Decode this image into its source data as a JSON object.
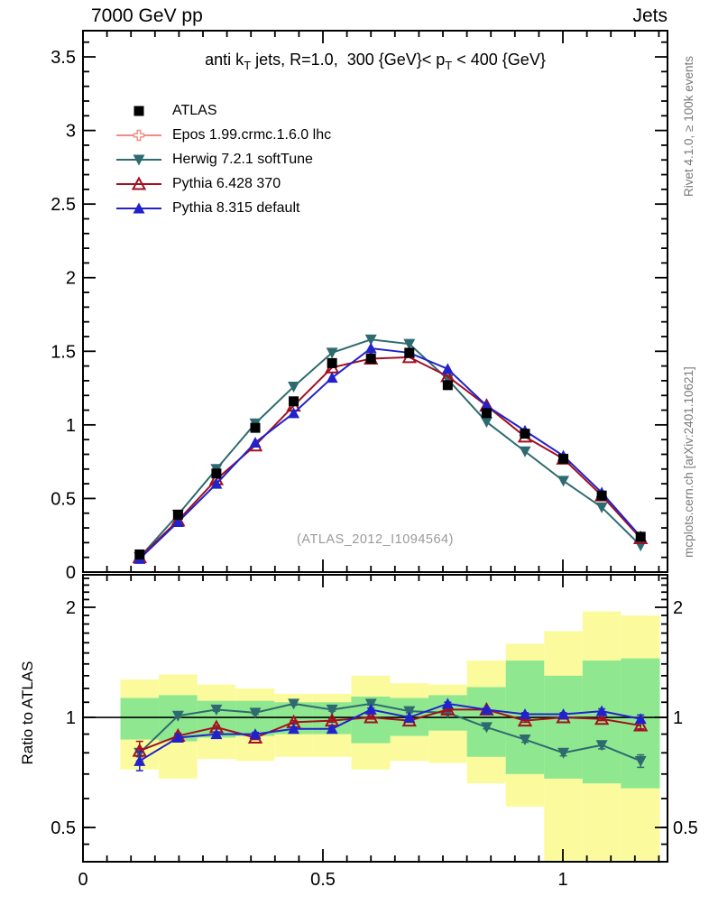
{
  "header": {
    "left": "7000 GeV pp",
    "right": "Jets"
  },
  "title": {
    "p1": "anti k",
    "s1": "T",
    "p2": " jets, R=1.0,  300 {GeV}< p",
    "s2": "T",
    "p3": " < 400 {GeV}"
  },
  "watermark": "(ATLAS_2012_I1094564)",
  "side_notes": {
    "top": "Rivet 4.1.0, ≥ 100k events",
    "bottom": "mcplots.cern.ch [arXiv:2401.10621]"
  },
  "ratio_axis_title": "Ratio to ATLAS",
  "colors": {
    "atlas": "#000000",
    "epos": "#F28B82",
    "herwig": "#2E6B70",
    "pythia6": "#A3101F",
    "pythia8": "#2222CC",
    "band_yellow": "#FBFB9E",
    "band_green": "#8FE88F",
    "frame": "#000000",
    "note_gray": "#7a7a7a",
    "watermark_gray": "#9a9a9a"
  },
  "legend": [
    {
      "label": "ATLAS",
      "marker": "square",
      "color": "#000000",
      "line": false
    },
    {
      "label": "Epos 1.99.crmc.1.6.0 lhc",
      "marker": "cross-open",
      "color": "#F28B82",
      "line": true
    },
    {
      "label": "Herwig 7.2.1 softTune",
      "marker": "triangle-down",
      "color": "#2E6B70",
      "line": true
    },
    {
      "label": "Pythia 6.428 370",
      "marker": "triangle-open",
      "color": "#A3101F",
      "line": true
    },
    {
      "label": "Pythia 8.315 default",
      "marker": "triangle-up",
      "color": "#2222CC",
      "line": true
    }
  ],
  "chart_data": {
    "type": "line",
    "title": "anti kT jets, R=1.0, 300 GeV < pT < 400 GeV",
    "xlim": [
      0,
      1.218
    ],
    "x_bin_edges": [
      0.078,
      0.158,
      0.238,
      0.318,
      0.399,
      0.479,
      0.559,
      0.64,
      0.72,
      0.8,
      0.881,
      0.961,
      1.041,
      1.121,
      1.202
    ],
    "x_centers": [
      0.118,
      0.198,
      0.278,
      0.359,
      0.439,
      0.519,
      0.6,
      0.68,
      0.76,
      0.841,
      0.921,
      1.001,
      1.081,
      1.162
    ],
    "xticks": [
      {
        "v": 0,
        "label": "0"
      },
      {
        "v": 0.5,
        "label": "0.5"
      },
      {
        "v": 1,
        "label": "1"
      }
    ],
    "main_panel": {
      "ylim": [
        0,
        3.678
      ],
      "yticks": [
        {
          "v": 0,
          "label": "0"
        },
        {
          "v": 0.5,
          "label": "0.5"
        },
        {
          "v": 1,
          "label": "1"
        },
        {
          "v": 1.5,
          "label": "1.5"
        },
        {
          "v": 2,
          "label": "2"
        },
        {
          "v": 2.5,
          "label": "2.5"
        },
        {
          "v": 3,
          "label": "3"
        },
        {
          "v": 3.5,
          "label": "3.5"
        }
      ],
      "series": [
        {
          "name": "Herwig 7.2.1 softTune",
          "color": "#2E6B70",
          "marker": "triangle-down",
          "line": true,
          "values": [
            0.1,
            0.39,
            0.7,
            1.01,
            1.26,
            1.49,
            1.58,
            1.55,
            1.31,
            1.02,
            0.82,
            0.62,
            0.44,
            0.18
          ]
        },
        {
          "name": "Pythia 6.428 370",
          "color": "#A3101F",
          "marker": "triangle-open",
          "line": true,
          "values": [
            0.1,
            0.35,
            0.63,
            0.86,
            1.13,
            1.39,
            1.45,
            1.46,
            1.33,
            1.13,
            0.92,
            0.77,
            0.52,
            0.23
          ]
        },
        {
          "name": "Pythia 8.315 default",
          "color": "#2222CC",
          "marker": "triangle-up",
          "line": true,
          "values": [
            0.09,
            0.34,
            0.6,
            0.88,
            1.08,
            1.32,
            1.52,
            1.49,
            1.38,
            1.13,
            0.96,
            0.79,
            0.54,
            0.24
          ]
        },
        {
          "name": "ATLAS",
          "color": "#000000",
          "marker": "square",
          "line": false,
          "values": [
            0.12,
            0.39,
            0.67,
            0.98,
            1.16,
            1.42,
            1.45,
            1.49,
            1.27,
            1.08,
            0.94,
            0.77,
            0.52,
            0.24
          ]
        },
        {
          "name": "Epos 1.99.crmc.1.6.0 lhc",
          "color": "#F28B82",
          "marker": "cross-open",
          "line": true,
          "values": []
        }
      ]
    },
    "ratio_panel": {
      "scale": "log",
      "ylim": [
        0.403,
        2.454
      ],
      "yticks": [
        {
          "v": 0.5,
          "label": "0.5"
        },
        {
          "v": 1,
          "label": "1"
        },
        {
          "v": 2,
          "label": "2"
        }
      ],
      "reference_line": 1,
      "bands": {
        "yellow_lo": [
          0.72,
          0.68,
          0.77,
          0.76,
          0.78,
          0.78,
          0.72,
          0.76,
          0.75,
          0.66,
          0.57,
          0.4,
          0.4,
          0.4
        ],
        "yellow_hi": [
          1.27,
          1.31,
          1.23,
          1.2,
          1.16,
          1.16,
          1.3,
          1.24,
          1.23,
          1.43,
          1.59,
          1.72,
          1.95,
          1.9
        ],
        "green_lo": [
          0.87,
          0.86,
          0.88,
          0.89,
          0.9,
          0.9,
          0.85,
          0.89,
          0.92,
          0.78,
          0.7,
          0.68,
          0.66,
          0.64
        ],
        "green_hi": [
          1.13,
          1.15,
          1.11,
          1.11,
          1.1,
          1.1,
          1.14,
          1.13,
          1.15,
          1.21,
          1.43,
          1.3,
          1.43,
          1.45
        ]
      },
      "series": [
        {
          "name": "Herwig 7.2.1 softTune",
          "color": "#2E6B70",
          "marker": "triangle-down",
          "line": true,
          "values": [
            0.8,
            1.01,
            1.05,
            1.03,
            1.09,
            1.05,
            1.09,
            1.04,
            1.03,
            0.94,
            0.87,
            0.8,
            0.84,
            0.76
          ],
          "err": [
            0.02,
            0.01,
            0.01,
            0.01,
            0.01,
            0.01,
            0.01,
            0.01,
            0.01,
            0.01,
            0.015,
            0.015,
            0.02,
            0.03
          ]
        },
        {
          "name": "Pythia 6.428 370",
          "color": "#A3101F",
          "marker": "triangle-open",
          "line": true,
          "values": [
            0.81,
            0.89,
            0.94,
            0.88,
            0.97,
            0.98,
            1.0,
            0.98,
            1.05,
            1.05,
            0.98,
            1.0,
            0.99,
            0.95
          ],
          "err": [
            0.05,
            0.015,
            0.01,
            0.01,
            0.01,
            0.01,
            0.01,
            0.01,
            0.01,
            0.01,
            0.01,
            0.01,
            0.01,
            0.02
          ]
        },
        {
          "name": "Pythia 8.315 default",
          "color": "#2222CC",
          "marker": "triangle-up",
          "line": true,
          "values": [
            0.76,
            0.88,
            0.9,
            0.9,
            0.93,
            0.93,
            1.05,
            1.0,
            1.09,
            1.05,
            1.02,
            1.02,
            1.04,
            0.99
          ],
          "err": [
            0.045,
            0.015,
            0.01,
            0.01,
            0.01,
            0.01,
            0.01,
            0.01,
            0.01,
            0.01,
            0.01,
            0.01,
            0.015,
            0.025
          ]
        }
      ]
    }
  }
}
